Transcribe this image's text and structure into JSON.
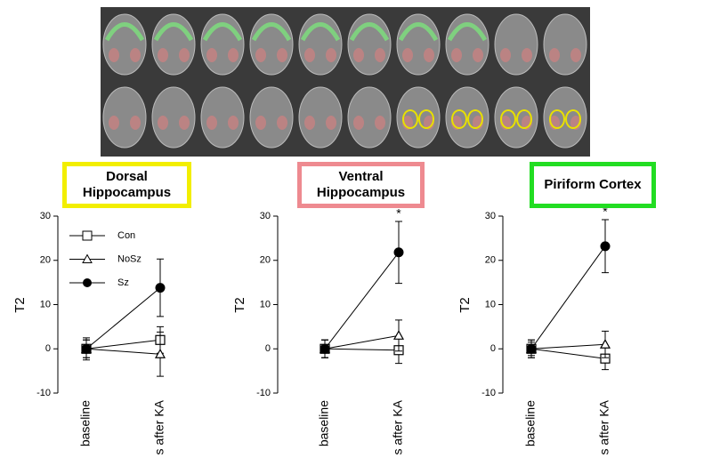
{
  "chart_data": [
    {
      "type": "line",
      "title": "Dorsal Hippocampus",
      "title_box_color": "#f2ee00",
      "ylabel": "T2",
      "categories": [
        "baseline",
        "s after KA"
      ],
      "ylim": [
        -10,
        30
      ],
      "yticks": [
        -10,
        0,
        10,
        20,
        30
      ],
      "legend": "upper left",
      "series": [
        {
          "name": "Con",
          "color": "#000000",
          "marker": "square",
          "values": [
            0,
            2
          ],
          "errors": [
            2.5,
            3
          ]
        },
        {
          "name": "NoSz",
          "color": "#000000",
          "marker": "triangle",
          "values": [
            0,
            -1.2
          ],
          "errors": [
            2,
            5
          ]
        },
        {
          "name": "Sz",
          "color": "#000000",
          "marker": "circle",
          "values": [
            0,
            13.8
          ],
          "errors": [
            2,
            6.5
          ]
        }
      ]
    },
    {
      "type": "line",
      "title": "Ventral Hippocampus",
      "title_box_color": "#ee8a90",
      "ylabel": "T2",
      "categories": [
        "baseline",
        "s after KA"
      ],
      "ylim": [
        -10,
        30
      ],
      "yticks": [
        -10,
        0,
        10,
        20,
        30
      ],
      "annotation": "*",
      "series": [
        {
          "name": "Con",
          "color": "#000000",
          "marker": "square",
          "values": [
            0,
            -0.3
          ],
          "errors": [
            2,
            3
          ]
        },
        {
          "name": "NoSz",
          "color": "#000000",
          "marker": "triangle",
          "values": [
            0,
            3
          ],
          "errors": [
            2,
            3.5
          ]
        },
        {
          "name": "Sz",
          "color": "#000000",
          "marker": "circle",
          "values": [
            0,
            21.8
          ],
          "errors": [
            2,
            7
          ]
        }
      ]
    },
    {
      "type": "line",
      "title": "Piriform Cortex",
      "title_box_color": "#22dd22",
      "ylabel": "T2",
      "categories": [
        "baseline",
        "s after KA"
      ],
      "ylim": [
        -10,
        30
      ],
      "yticks": [
        -10,
        0,
        10,
        20,
        30
      ],
      "annotation": "*",
      "series": [
        {
          "name": "Con",
          "color": "#000000",
          "marker": "square",
          "values": [
            0,
            -2.2
          ],
          "errors": [
            2,
            2.5
          ]
        },
        {
          "name": "NoSz",
          "color": "#000000",
          "marker": "triangle",
          "values": [
            0,
            1
          ],
          "errors": [
            1.5,
            3
          ]
        },
        {
          "name": "Sz",
          "color": "#000000",
          "marker": "circle",
          "values": [
            0,
            23.2
          ],
          "errors": [
            2,
            6
          ]
        }
      ]
    }
  ]
}
